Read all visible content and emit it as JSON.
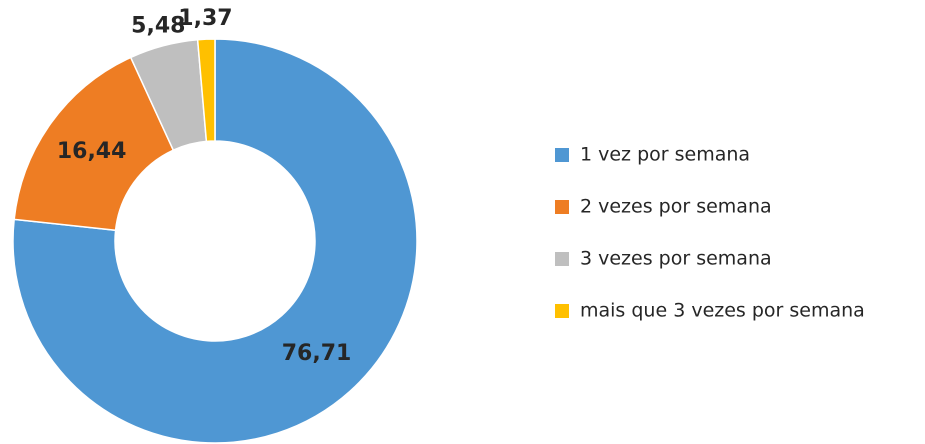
{
  "chart_data": {
    "type": "donut",
    "categories": [
      "1 vez por semana",
      "2 vezes por semana",
      "3 vezes por semana",
      "mais que 3 vezes por semana"
    ],
    "values": [
      76.71,
      16.44,
      5.48,
      1.37
    ],
    "value_labels": [
      "76,71",
      "16,44",
      "5,48",
      "1,37"
    ],
    "colors": [
      "#4f97d3",
      "#ee7d23",
      "#bfbfbf",
      "#ffc000"
    ],
    "legend": "right"
  }
}
